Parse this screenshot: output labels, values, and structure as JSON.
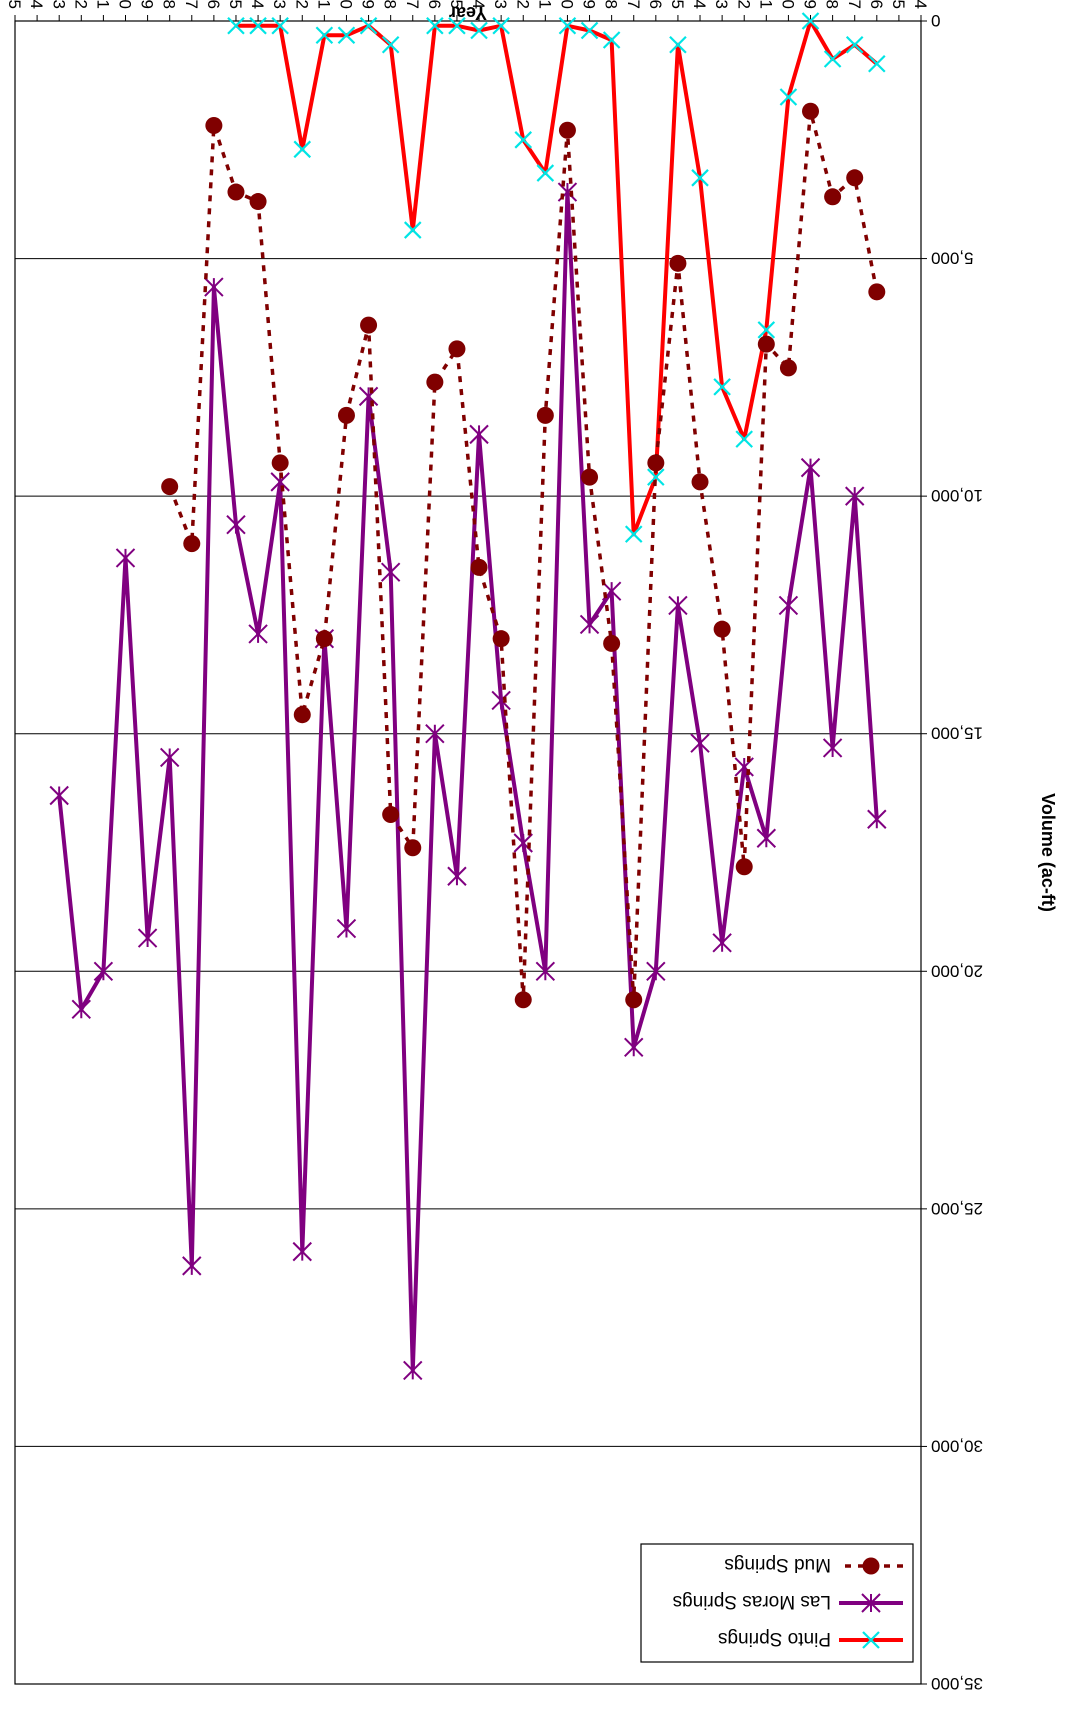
{
  "chart_data": {
    "type": "line",
    "title": "",
    "xlabel": "Year",
    "ylabel": "Volume (ac-ft)",
    "orientation": "rotated-180",
    "xlim": [
      1964,
      2005
    ],
    "ylim": [
      0,
      35000
    ],
    "x_ticks": [
      1964,
      1965,
      1966,
      1967,
      1968,
      1969,
      1970,
      1971,
      1972,
      1973,
      1974,
      1975,
      1976,
      1977,
      1978,
      1979,
      1980,
      1981,
      1982,
      1983,
      1984,
      1985,
      1986,
      1987,
      1988,
      1989,
      1990,
      1991,
      1992,
      1993,
      1994,
      1995,
      1996,
      1997,
      1998,
      1999,
      2000,
      2001,
      2002,
      2003,
      2004,
      2005
    ],
    "x_tick_labels": [
      "1964",
      "1965",
      "1966",
      "1967",
      "1968",
      "1969",
      "1970",
      "1971",
      "1972",
      "1973",
      "1974",
      "1975",
      "1976",
      "1977",
      "1978",
      "1979",
      "1980",
      "1981",
      "1982",
      "1983",
      "1984",
      "1985",
      "1986",
      "1987",
      "1988",
      "1989",
      "1990",
      "1991",
      "1992",
      "1993",
      "1994",
      "1995",
      "1996",
      "1997",
      "1998",
      "1999",
      "2000",
      "2001",
      "2002",
      "2003",
      "2004",
      "2005"
    ],
    "y_ticks": [
      0,
      5000,
      10000,
      15000,
      20000,
      25000,
      30000,
      35000
    ],
    "y_tick_labels": [
      "0",
      "5,000",
      "10,000",
      "15,000",
      "20,000",
      "25,000",
      "30,000",
      "35,000"
    ],
    "grid": "horizontal",
    "legend_position": "upper-left",
    "series": [
      {
        "name": "Pinto Springs",
        "color": "#ff0000",
        "marker": "x-cyan",
        "line": "solid",
        "x": [
          1966,
          1967,
          1968,
          1969,
          1970,
          1971,
          1972,
          1973,
          1974,
          1975,
          1976,
          1977,
          1978,
          1979,
          1980,
          1981,
          1982,
          1983,
          1984,
          1985,
          1986,
          1987,
          1988,
          1989,
          1990,
          1991,
          1992,
          1993,
          1994,
          1995
        ],
        "values": [
          900,
          500,
          800,
          0,
          1600,
          6500,
          8800,
          7700,
          3300,
          500,
          9600,
          10800,
          400,
          200,
          100,
          3200,
          2500,
          100,
          200,
          100,
          100,
          4400,
          500,
          100,
          300,
          300,
          2700,
          100,
          100,
          100
        ]
      },
      {
        "name": "Las Moras Springs",
        "color": "#800080",
        "marker": "x-star",
        "line": "solid",
        "x": [
          1966,
          1967,
          1968,
          1969,
          1970,
          1971,
          1972,
          1973,
          1974,
          1975,
          1976,
          1977,
          1978,
          1979,
          1980,
          1981,
          1982,
          1983,
          1984,
          1985,
          1986,
          1987,
          1988,
          1989,
          1990,
          1991,
          1992,
          1993,
          1994,
          1995,
          1996,
          1997,
          1998,
          1999,
          2000,
          2001,
          2002,
          2003
        ],
        "values": [
          16800,
          10000,
          15300,
          9400,
          12300,
          17200,
          15700,
          19400,
          15200,
          12300,
          20000,
          21600,
          12000,
          12700,
          3600,
          20000,
          17300,
          14300,
          8700,
          18000,
          15000,
          28400,
          11600,
          7900,
          19100,
          13000,
          25900,
          9700,
          12900,
          10600,
          5600,
          26200,
          15500,
          19300,
          11300,
          20000,
          20800,
          16300
        ]
      },
      {
        "name": "Mud Springs",
        "color": "#800000",
        "marker": "circle",
        "line": "dashed",
        "x": [
          1966,
          1967,
          1968,
          1969,
          1970,
          1971,
          1972,
          1973,
          1974,
          1975,
          1976,
          1977,
          1978,
          1979,
          1980,
          1981,
          1982,
          1983,
          1984,
          1985,
          1986,
          1987,
          1988,
          1989,
          1990,
          1991,
          1992,
          1993,
          1994,
          1995,
          1996,
          1997,
          1998
        ],
        "values": [
          5700,
          3300,
          3700,
          1900,
          7300,
          6800,
          17800,
          12800,
          9700,
          5100,
          9300,
          20600,
          13100,
          9600,
          2300,
          8300,
          20600,
          13000,
          11500,
          6900,
          7600,
          17400,
          16700,
          6400,
          8300,
          13000,
          14600,
          9300,
          3800,
          3600,
          2200,
          11000,
          9800
        ]
      }
    ]
  }
}
